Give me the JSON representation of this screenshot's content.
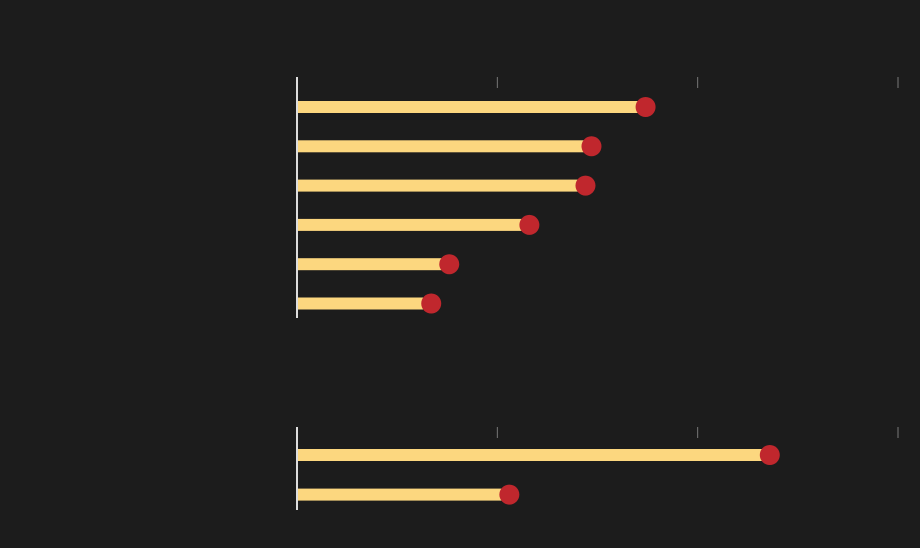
{
  "chart_data": [
    {
      "type": "lollipop",
      "categories": [
        null,
        null,
        null,
        null,
        null,
        null
      ],
      "values": [
        1.74,
        1.47,
        1.44,
        1.16,
        0.76,
        0.67
      ],
      "color": "#fcd77f",
      "dot_color": "#c0272d",
      "xlim": [
        0,
        3
      ],
      "xticks": [
        0,
        1,
        2,
        3
      ]
    },
    {
      "type": "lollipop",
      "categories": [
        null,
        null
      ],
      "values": [
        2.36,
        1.06
      ],
      "color": "#fcd77f",
      "dot_color": "#c0272d",
      "xlim": [
        0,
        3
      ],
      "xticks": [
        0,
        1,
        2,
        3
      ]
    }
  ]
}
